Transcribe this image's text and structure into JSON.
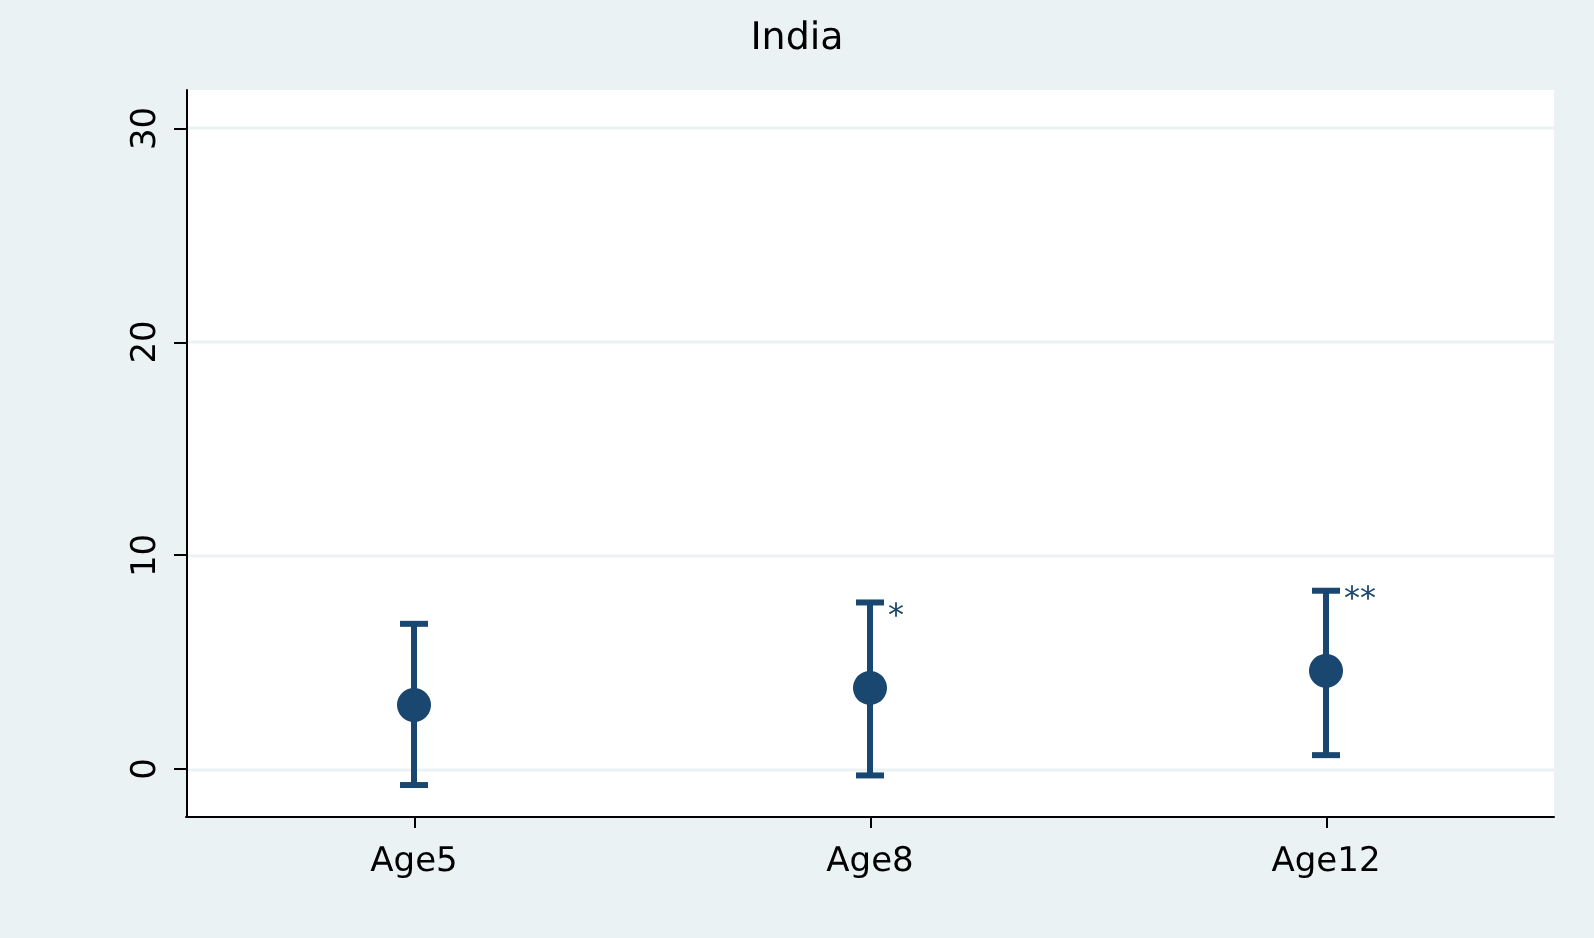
{
  "chart_data": {
    "type": "scatter",
    "title": "India",
    "categories": [
      "Age5",
      "Age8",
      "Age12"
    ],
    "series": [
      {
        "color": "#1a476f",
        "values": [
          3.0,
          3.8,
          4.6
        ],
        "errors": [
          [
            -0.75,
            6.8
          ],
          [
            -0.3,
            7.8
          ],
          [
            0.65,
            8.35
          ]
        ]
      }
    ],
    "ylim": [
      -2.2,
      31.8
    ],
    "yticks": [
      0,
      10,
      20,
      30
    ],
    "grid": "y",
    "marker": "circle",
    "annotations": [
      {
        "text": "*",
        "x": "Age8",
        "y": 7.2
      },
      {
        "text": "**",
        "x": "Age12",
        "y": 8.0
      }
    ]
  }
}
